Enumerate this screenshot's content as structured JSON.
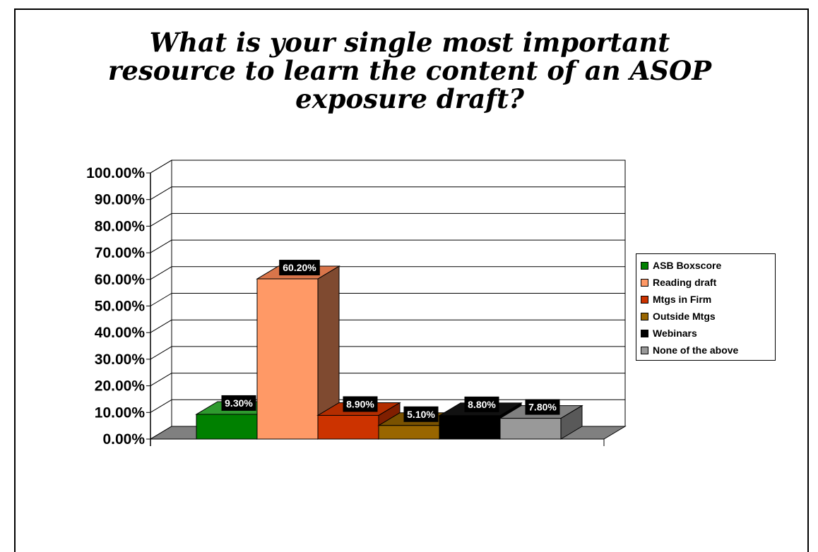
{
  "slide": {
    "title_lines": [
      "What is your single most important",
      "resource to learn the content of an ASOP",
      "exposure draft?"
    ]
  },
  "chart_data": {
    "type": "bar",
    "title": "What is your single most important resource to learn the content of an ASOP exposure draft?",
    "y_ticks": [
      "0.00%",
      "10.00%",
      "20.00%",
      "30.00%",
      "40.00%",
      "50.00%",
      "60.00%",
      "70.00%",
      "80.00%",
      "90.00%",
      "100.00%"
    ],
    "ylim": [
      0,
      100
    ],
    "grid": true,
    "legend_placement": "right",
    "three_d": true,
    "series": [
      {
        "name": "ASB Boxscore",
        "value": 9.3,
        "label": "9.30%",
        "color": "#008000",
        "top_color": "#2e9a2e",
        "side_color": "#005c00"
      },
      {
        "name": "Reading draft",
        "value": 60.2,
        "label": "60.20%",
        "color": "#ff9966",
        "top_color": "#d9754a",
        "side_color": "#7f4a30"
      },
      {
        "name": "Mtgs in Firm",
        "value": 8.9,
        "label": "8.90%",
        "color": "#cc3300",
        "top_color": "#b32d00",
        "side_color": "#801f00"
      },
      {
        "name": "Outside Mtgs",
        "value": 5.1,
        "label": "5.10%",
        "color": "#996600",
        "top_color": "#7a5200",
        "side_color": "#5c3d00"
      },
      {
        "name": "Webinars",
        "value": 8.8,
        "label": "8.80%",
        "color": "#000000",
        "top_color": "#111111",
        "side_color": "#000000"
      },
      {
        "name": "None of the above",
        "value": 7.8,
        "label": "7.80%",
        "color": "#999999",
        "top_color": "#808080",
        "side_color": "#595959"
      }
    ]
  }
}
